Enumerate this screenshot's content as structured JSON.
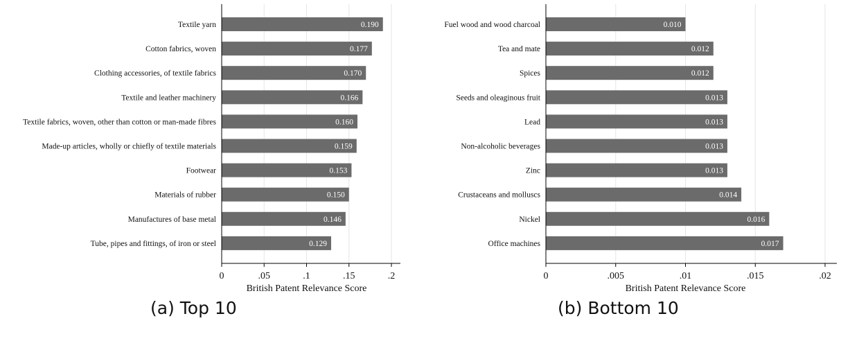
{
  "colors": {
    "bar": "#6b6b6b",
    "bar_label": "#ffffff",
    "grid": "#e6e6e6",
    "axis": "#000000",
    "text": "#111111"
  },
  "chart_data": [
    {
      "type": "bar",
      "orientation": "horizontal",
      "caption": "(a) Top 10",
      "categories": [
        "Textile yarn",
        "Cotton fabrics, woven",
        "Clothing accessories, of textile fabrics",
        "Textile and leather machinery",
        "Textile fabrics, woven, other than cotton or man-made fibres",
        "Made-up articles, wholly or chiefly of textile materials",
        "Footwear",
        "Materials of rubber",
        "Manufactures of base metal",
        "Tube, pipes and fittings, of iron or steel"
      ],
      "values": [
        0.19,
        0.177,
        0.17,
        0.166,
        0.16,
        0.159,
        0.153,
        0.15,
        0.146,
        0.129
      ],
      "data_labels": [
        "0.190",
        "0.177",
        "0.170",
        "0.166",
        "0.160",
        "0.159",
        "0.153",
        "0.150",
        "0.146",
        "0.129"
      ],
      "xlabel": "British Patent Relevance Score",
      "xlim": [
        0,
        0.2
      ],
      "xticks": [
        0,
        0.05,
        0.1,
        0.15,
        0.2
      ],
      "xtick_labels": [
        "0",
        ".05",
        ".1",
        ".15",
        ".2"
      ],
      "grid": true
    },
    {
      "type": "bar",
      "orientation": "horizontal",
      "caption": "(b) Bottom 10",
      "categories": [
        "Fuel wood and wood charcoal",
        "Tea and mate",
        "Spices",
        "Seeds and oleaginous fruit",
        "Lead",
        "Non-alcoholic beverages",
        "Zinc",
        "Crustaceans and molluscs",
        "Nickel",
        "Office machines"
      ],
      "values": [
        0.01,
        0.012,
        0.012,
        0.013,
        0.013,
        0.013,
        0.013,
        0.014,
        0.016,
        0.017
      ],
      "data_labels": [
        "0.010",
        "0.012",
        "0.012",
        "0.013",
        "0.013",
        "0.013",
        "0.013",
        "0.014",
        "0.016",
        "0.017"
      ],
      "xlabel": "British Patent Relevance Score",
      "xlim": [
        0,
        0.02
      ],
      "xticks": [
        0,
        0.005,
        0.01,
        0.015,
        0.02
      ],
      "xtick_labels": [
        "0",
        ".005",
        ".01",
        ".015",
        ".02"
      ],
      "grid": true
    }
  ]
}
